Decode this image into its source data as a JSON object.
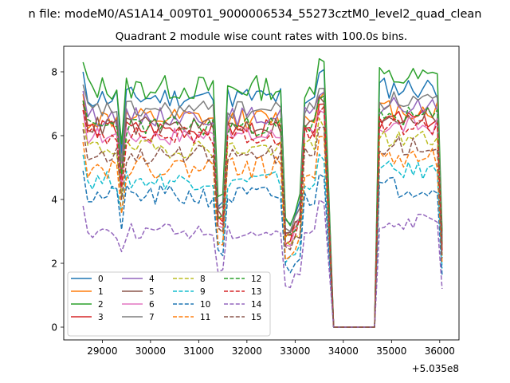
{
  "figure": {
    "suptitle": "n file: modeM0/AS1A14_009T01_9000006534_55273cztM0_level2_quad_clean",
    "offset_label": "+5.035e8"
  },
  "chart_data": {
    "type": "line",
    "title": "Quadrant 2 module wise count rates with 100.0s bins.",
    "xlabel": "",
    "ylabel": "",
    "x_offset": 503500000,
    "xlim": [
      28200,
      36400
    ],
    "ylim": [
      -0.4,
      8.8
    ],
    "xticks": [
      29000,
      30000,
      31000,
      32000,
      33000,
      34000,
      35000,
      36000
    ],
    "xtick_labels": [
      "29000",
      "30000",
      "31000",
      "32000",
      "33000",
      "34000",
      "35000",
      "36000"
    ],
    "yticks": [
      0,
      2,
      4,
      6,
      8
    ],
    "ytick_labels": [
      "0",
      "2",
      "4",
      "6",
      "8"
    ],
    "grid": false,
    "legend": {
      "position": "lower-left",
      "columns": 4
    },
    "gap_interval": [
      33800,
      34650
    ],
    "series": [
      {
        "name": "0",
        "color": "#1f77b4",
        "style": "solid",
        "base": 7.2,
        "noise": 0.35,
        "seed": 11
      },
      {
        "name": "1",
        "color": "#ff7f0e",
        "style": "solid",
        "base": 6.5,
        "noise": 0.35,
        "seed": 12
      },
      {
        "name": "2",
        "color": "#2ca02c",
        "style": "solid",
        "base": 7.5,
        "noise": 0.4,
        "seed": 13
      },
      {
        "name": "3",
        "color": "#d62728",
        "style": "solid",
        "base": 6.2,
        "noise": 0.3,
        "seed": 14
      },
      {
        "name": "4",
        "color": "#9467bd",
        "style": "solid",
        "base": 6.6,
        "noise": 0.3,
        "seed": 15
      },
      {
        "name": "5",
        "color": "#8c564b",
        "style": "solid",
        "base": 6.3,
        "noise": 0.3,
        "seed": 16
      },
      {
        "name": "6",
        "color": "#e377c2",
        "style": "solid",
        "base": 6.0,
        "noise": 0.3,
        "seed": 17
      },
      {
        "name": "7",
        "color": "#7f7f7f",
        "style": "solid",
        "base": 6.8,
        "noise": 0.3,
        "seed": 18
      },
      {
        "name": "8",
        "color": "#bcbd22",
        "style": "dashed",
        "base": 5.6,
        "noise": 0.3,
        "seed": 19
      },
      {
        "name": "9",
        "color": "#17becf",
        "style": "dashed",
        "base": 4.6,
        "noise": 0.3,
        "seed": 20
      },
      {
        "name": "10",
        "color": "#1f77b4",
        "style": "dashed",
        "base": 4.1,
        "noise": 0.35,
        "seed": 21
      },
      {
        "name": "11",
        "color": "#ff7f0e",
        "style": "dashed",
        "base": 5.0,
        "noise": 0.35,
        "seed": 22
      },
      {
        "name": "12",
        "color": "#2ca02c",
        "style": "dashed",
        "base": 6.3,
        "noise": 0.3,
        "seed": 23
      },
      {
        "name": "13",
        "color": "#d62728",
        "style": "dashed",
        "base": 6.0,
        "noise": 0.3,
        "seed": 24
      },
      {
        "name": "14",
        "color": "#9467bd",
        "style": "dashed",
        "base": 3.0,
        "noise": 0.25,
        "seed": 25
      },
      {
        "name": "15",
        "color": "#8c564b",
        "style": "dashed",
        "base": 5.4,
        "noise": 0.3,
        "seed": 26
      }
    ]
  }
}
